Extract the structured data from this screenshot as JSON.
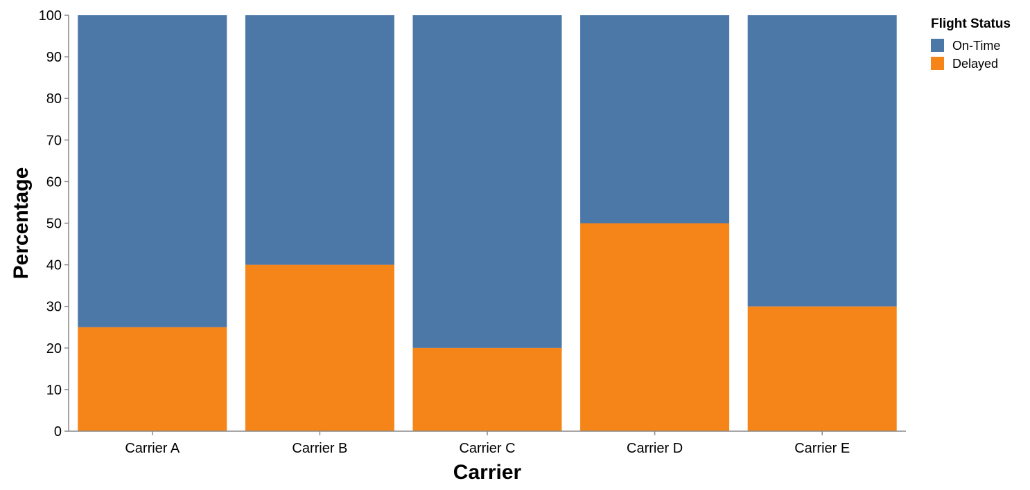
{
  "chart_data": {
    "type": "bar",
    "stacked": true,
    "xlabel": "Carrier",
    "ylabel": "Percentage",
    "categories": [
      "Carrier A",
      "Carrier B",
      "Carrier C",
      "Carrier D",
      "Carrier E"
    ],
    "series": [
      {
        "name": "Delayed",
        "values": [
          25,
          40,
          20,
          50,
          30
        ],
        "color": "#f58518"
      },
      {
        "name": "On-Time",
        "values": [
          75,
          60,
          80,
          50,
          70
        ],
        "color": "#4c78a8"
      }
    ],
    "ylim": [
      0,
      100
    ],
    "yticks": [
      0,
      10,
      20,
      30,
      40,
      50,
      60,
      70,
      80,
      90,
      100
    ],
    "grid": false,
    "legend": {
      "title": "Flight Status",
      "placement": "top-right",
      "entries": [
        {
          "label": "On-Time",
          "color": "#4c78a8"
        },
        {
          "label": "Delayed",
          "color": "#f58518"
        }
      ]
    },
    "axis_color": "#888888"
  }
}
